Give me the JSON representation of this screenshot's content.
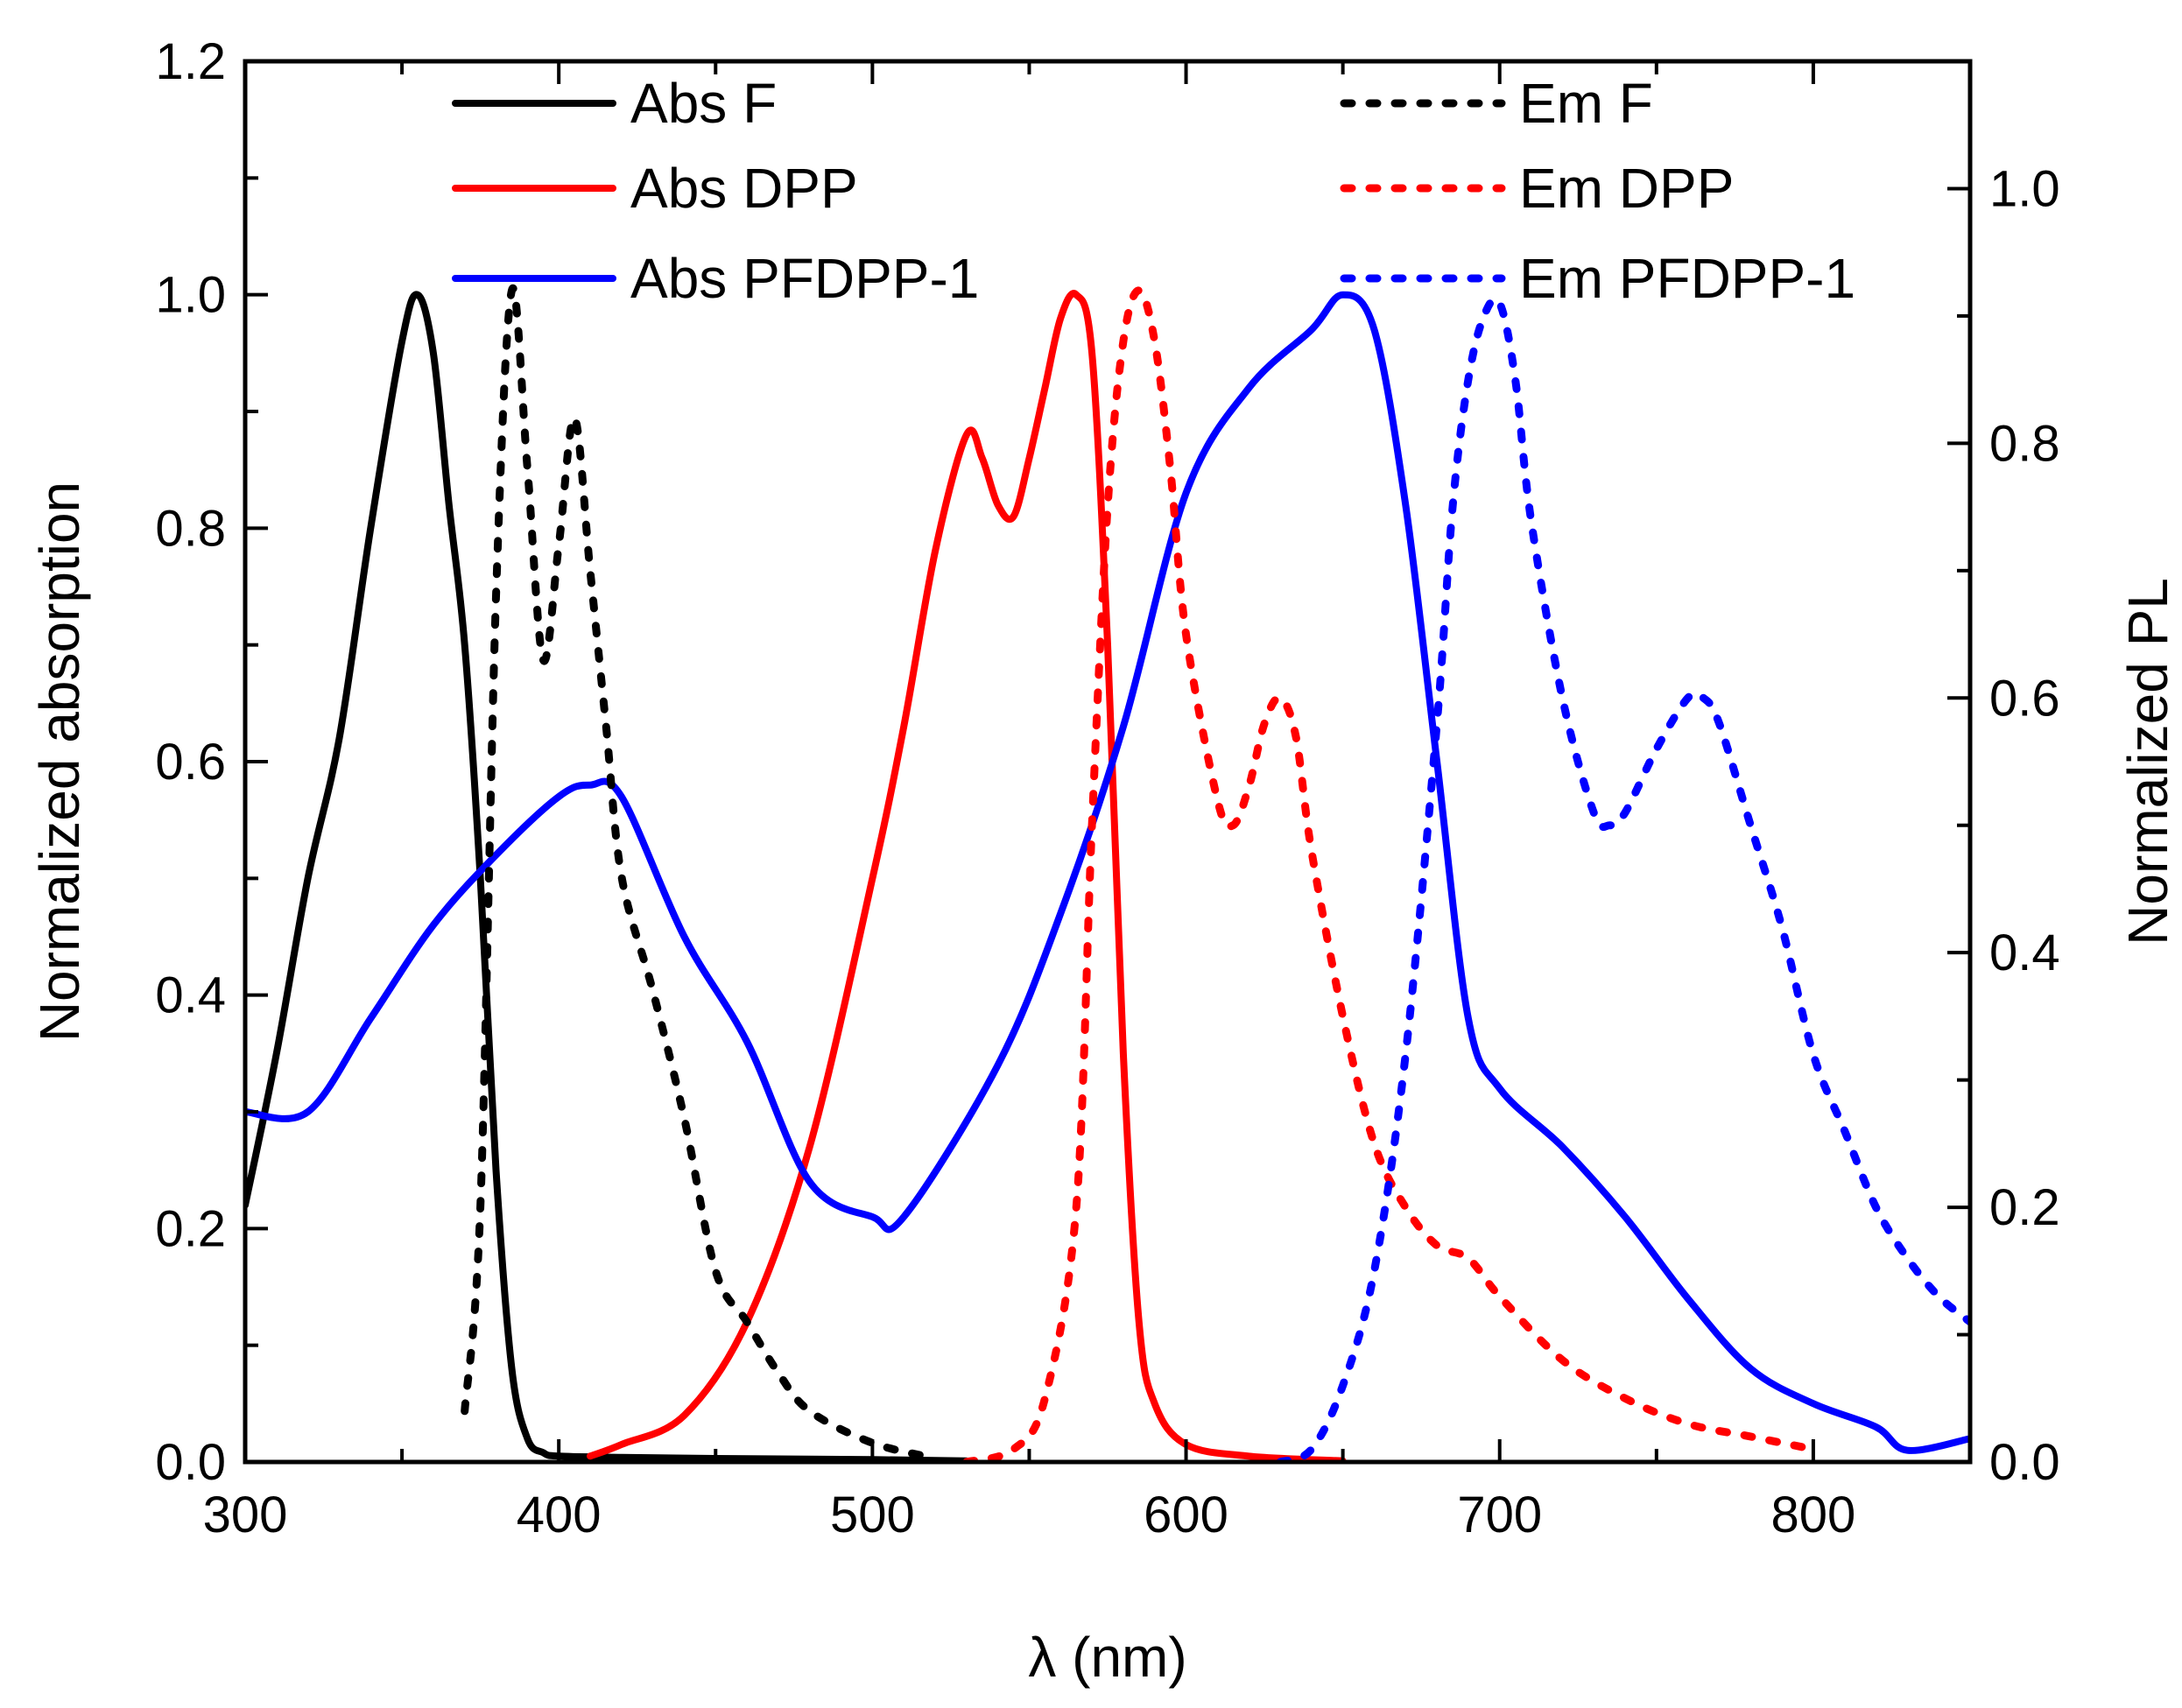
{
  "chart_data": {
    "type": "line",
    "xlabel": "λ (nm)",
    "ylabel": "Normalized absorption",
    "y2label": "Normalized PL",
    "xlim": [
      300,
      850
    ],
    "ylim": [
      0,
      1.2
    ],
    "y2lim": [
      0,
      1.1
    ],
    "xticks": [
      300,
      400,
      500,
      600,
      700,
      800
    ],
    "yticks": [
      0.0,
      0.2,
      0.4,
      0.6,
      0.8,
      1.0,
      1.2
    ],
    "y2ticks": [
      0.0,
      0.2,
      0.4,
      0.6,
      0.8,
      1.0
    ],
    "grid": false,
    "legend_placement": "top",
    "series": [
      {
        "name": "Abs F",
        "axis": "left",
        "color": "#000000",
        "style": "solid",
        "x": [
          300,
          310,
          320,
          330,
          340,
          350,
          355,
          360,
          365,
          370,
          375,
          380,
          385,
          390,
          395,
          400,
          420,
          450,
          500,
          530
        ],
        "y": [
          0.22,
          0.35,
          0.5,
          0.62,
          0.8,
          0.96,
          1.0,
          0.95,
          0.82,
          0.7,
          0.5,
          0.25,
          0.08,
          0.02,
          0.008,
          0.005,
          0.004,
          0.003,
          0.002,
          0.001
        ]
      },
      {
        "name": "Abs DPP",
        "axis": "left",
        "color": "#ff0000",
        "style": "solid",
        "x": [
          410,
          420,
          440,
          460,
          480,
          500,
          510,
          520,
          530,
          535,
          540,
          545,
          550,
          555,
          560,
          565,
          570,
          575,
          580,
          585,
          590,
          600,
          620,
          650
        ],
        "y": [
          0.005,
          0.015,
          0.04,
          0.12,
          0.27,
          0.5,
          0.63,
          0.78,
          0.88,
          0.86,
          0.82,
          0.81,
          0.86,
          0.92,
          0.98,
          1.0,
          0.95,
          0.7,
          0.35,
          0.12,
          0.05,
          0.015,
          0.005,
          0.001
        ]
      },
      {
        "name": "Abs PFDPP-1",
        "axis": "left",
        "color": "#0000ff",
        "style": "solid",
        "x": [
          300,
          320,
          340,
          360,
          380,
          400,
          410,
          420,
          440,
          460,
          480,
          500,
          510,
          540,
          560,
          580,
          600,
          620,
          640,
          650,
          660,
          670,
          680,
          690,
          700,
          720,
          740,
          760,
          780,
          800,
          820,
          830,
          850
        ],
        "y": [
          0.3,
          0.3,
          0.38,
          0.46,
          0.52,
          0.57,
          0.58,
          0.57,
          0.45,
          0.36,
          0.24,
          0.21,
          0.21,
          0.34,
          0.47,
          0.63,
          0.83,
          0.92,
          0.97,
          1.0,
          0.97,
          0.82,
          0.6,
          0.38,
          0.32,
          0.27,
          0.21,
          0.14,
          0.08,
          0.05,
          0.03,
          0.01,
          0.02
        ]
      },
      {
        "name": "Em F",
        "axis": "right",
        "color": "#000000",
        "style": "dotted",
        "x": [
          370,
          375,
          380,
          385,
          390,
          395,
          400,
          405,
          410,
          415,
          420,
          430,
          440,
          450,
          460,
          470,
          480,
          500,
          520
        ],
        "y": [
          0.04,
          0.2,
          0.68,
          0.92,
          0.78,
          0.63,
          0.72,
          0.82,
          0.7,
          0.58,
          0.46,
          0.37,
          0.27,
          0.15,
          0.11,
          0.07,
          0.04,
          0.015,
          0.003
        ]
      },
      {
        "name": "Em DPP",
        "axis": "right",
        "color": "#ff0000",
        "style": "dotted",
        "x": [
          530,
          545,
          555,
          565,
          570,
          575,
          580,
          585,
          590,
          595,
          600,
          610,
          615,
          620,
          625,
          630,
          635,
          640,
          650,
          660,
          670,
          680,
          690,
          700,
          720,
          740,
          760,
          780,
          800
        ],
        "y": [
          0.0,
          0.01,
          0.05,
          0.2,
          0.5,
          0.75,
          0.88,
          0.92,
          0.88,
          0.78,
          0.65,
          0.52,
          0.5,
          0.53,
          0.58,
          0.6,
          0.57,
          0.48,
          0.35,
          0.25,
          0.2,
          0.17,
          0.16,
          0.13,
          0.08,
          0.05,
          0.03,
          0.02,
          0.01
        ]
      },
      {
        "name": "Em PFDPP-1",
        "axis": "right",
        "color": "#0000ff",
        "style": "dotted",
        "x": [
          630,
          640,
          650,
          660,
          670,
          680,
          685,
          690,
          695,
          700,
          705,
          710,
          720,
          730,
          735,
          740,
          750,
          760,
          765,
          770,
          780,
          790,
          800,
          810,
          820,
          830,
          840,
          850
        ],
        "y": [
          0.0,
          0.01,
          0.06,
          0.15,
          0.32,
          0.58,
          0.75,
          0.85,
          0.9,
          0.91,
          0.85,
          0.74,
          0.6,
          0.51,
          0.5,
          0.51,
          0.56,
          0.6,
          0.6,
          0.58,
          0.5,
          0.42,
          0.32,
          0.26,
          0.2,
          0.16,
          0.13,
          0.11
        ]
      }
    ]
  }
}
